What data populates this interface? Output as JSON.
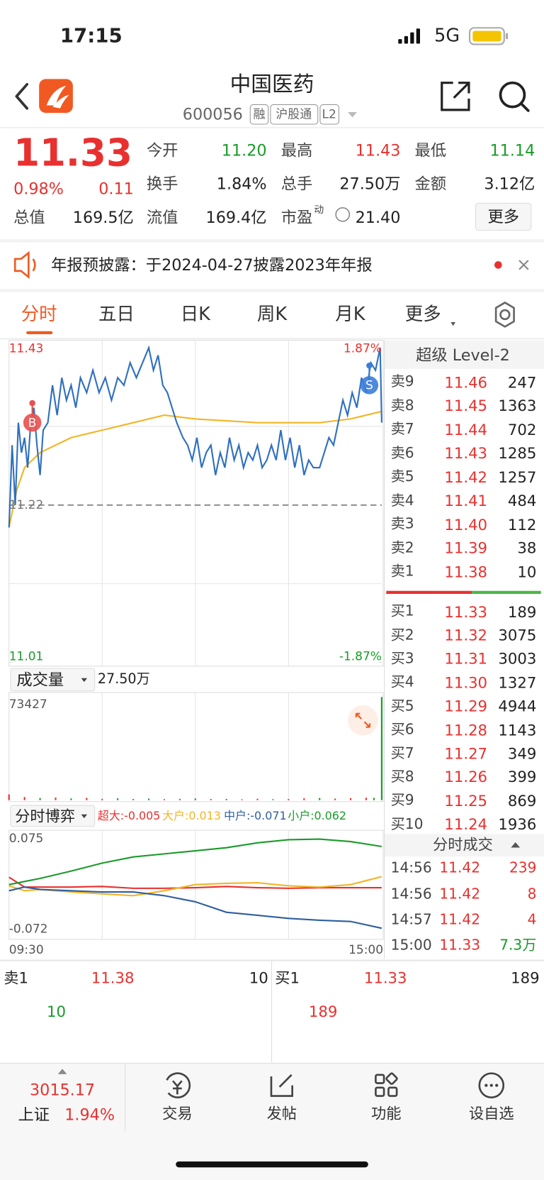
{
  "status_bar": {
    "time": "17:15",
    "network": "5G"
  },
  "header": {
    "name": "中国医药",
    "code": "600056",
    "tags": [
      "融",
      "沪股通",
      "L2"
    ]
  },
  "quote": {
    "price": "11.33",
    "change_pct": "0.98%",
    "change": "0.11",
    "stats": [
      {
        "label": "今开",
        "value": "11.20",
        "color": "#1a9b2a"
      },
      {
        "label": "最高",
        "value": "11.43",
        "color": "#e8312f"
      },
      {
        "label": "最低",
        "value": "11.14",
        "color": "#1a9b2a"
      },
      {
        "label": "换手",
        "value": "1.84%"
      },
      {
        "label": "总手",
        "value": "27.50万"
      },
      {
        "label": "金额",
        "value": "3.12亿"
      },
      {
        "label": "总值",
        "value": "169.5亿"
      },
      {
        "label": "流值",
        "value": "169.4亿"
      },
      {
        "label": "市盈",
        "sup": "动",
        "value": "21.40"
      }
    ],
    "more": "更多"
  },
  "notice": "年报预披露：于2024-04-27披露2023年年报",
  "tabs": [
    "分时",
    "五日",
    "日K",
    "周K",
    "月K",
    "更多"
  ],
  "intraday": {
    "ylim": [
      11.01,
      11.43
    ],
    "yticks": [
      {
        "value": 11.43,
        "label": "11.43"
      },
      {
        "value": 11.01,
        "label": "11.01"
      }
    ],
    "pct_ticks": [
      {
        "value": 11.43,
        "label": "1.87%"
      },
      {
        "value": 11.01,
        "label": "-1.87%"
      }
    ],
    "prev_close": {
      "value": 11.22,
      "label": "11.22"
    },
    "time_labels": [
      "09:30",
      "15:00"
    ],
    "minutes": [
      0,
      2,
      4,
      6,
      8,
      10,
      12,
      14,
      16,
      18,
      20,
      22,
      25,
      28,
      31,
      34,
      37,
      40,
      43,
      46,
      50,
      54,
      58,
      62,
      66,
      70,
      74,
      78,
      82,
      86,
      90,
      93,
      96,
      99,
      102,
      105,
      108,
      112,
      115,
      118,
      121,
      124,
      127,
      130,
      133,
      136,
      139,
      142,
      145,
      148,
      151,
      154,
      157,
      160,
      163,
      166,
      169,
      172,
      175,
      178,
      181,
      184,
      187,
      190,
      193,
      196,
      200,
      203,
      206,
      209,
      212,
      215,
      218,
      221,
      224,
      227,
      230,
      233,
      236,
      239,
      240
    ],
    "price": [
      11.19,
      11.3,
      11.22,
      11.33,
      11.29,
      11.31,
      11.27,
      11.33,
      11.35,
      11.3,
      11.26,
      11.32,
      11.33,
      11.38,
      11.34,
      11.39,
      11.36,
      11.38,
      11.35,
      11.39,
      11.37,
      11.4,
      11.37,
      11.39,
      11.36,
      11.39,
      11.38,
      11.41,
      11.39,
      11.41,
      11.43,
      11.4,
      11.42,
      11.38,
      11.37,
      11.35,
      11.33,
      11.31,
      11.3,
      11.28,
      11.31,
      11.27,
      11.29,
      11.3,
      11.26,
      11.29,
      11.27,
      11.31,
      11.28,
      11.3,
      11.27,
      11.29,
      11.28,
      11.3,
      11.27,
      11.28,
      11.3,
      11.28,
      11.32,
      11.28,
      11.31,
      11.27,
      11.3,
      11.26,
      11.28,
      11.27,
      11.27,
      11.29,
      11.31,
      11.3,
      11.33,
      11.36,
      11.34,
      11.37,
      11.35,
      11.39,
      11.37,
      11.41,
      11.4,
      11.43,
      11.33
    ],
    "avg_minutes": [
      0,
      5,
      10,
      20,
      40,
      60,
      80,
      100,
      120,
      160,
      200,
      220,
      240
    ],
    "avg": [
      11.19,
      11.24,
      11.27,
      11.29,
      11.31,
      11.32,
      11.33,
      11.34,
      11.335,
      11.33,
      11.33,
      11.335,
      11.345
    ],
    "markers": [
      {
        "label": "B",
        "value": 11.33,
        "minute": 15
      },
      {
        "label": "S",
        "value": 11.38,
        "minute": 232
      }
    ]
  },
  "volume": {
    "label": "成交量",
    "total": "27.50万",
    "ylim": [
      0,
      73427
    ],
    "max_label": "73427",
    "minutes": [
      0,
      10,
      20,
      30,
      40,
      50,
      60,
      70,
      80,
      90,
      100,
      110,
      120,
      130,
      140,
      150,
      160,
      170,
      180,
      190,
      200,
      210,
      220,
      230,
      235,
      240
    ],
    "values": [
      4100,
      2200,
      1500,
      1800,
      1200,
      1600,
      900,
      1300,
      800,
      1100,
      700,
      900,
      1200,
      800,
      900,
      600,
      1000,
      700,
      800,
      1300,
      1500,
      1100,
      1400,
      1700,
      1600,
      73427
    ],
    "colors": [
      "#e8312f",
      "#e8312f",
      "#1a9b2a",
      "#e8312f",
      "#1a9b2a",
      "#e8312f",
      "#e8312f",
      "#1a9b2a",
      "#e8312f",
      "#1a9b2a",
      "#e8312f",
      "#e8312f",
      "#1a9b2a",
      "#e8312f",
      "#1a9b2a",
      "#e8312f",
      "#e8312f",
      "#1a9b2a",
      "#e8312f",
      "#e8312f",
      "#1a9b2a",
      "#e8312f",
      "#e8312f",
      "#e8312f",
      "#1a9b2a",
      "#1a9b2a"
    ]
  },
  "game": {
    "label": "分时博弈",
    "ylim": [
      -0.072,
      0.075
    ],
    "yticks": [
      {
        "value": 0.075,
        "label": "0.075"
      },
      {
        "value": -0.072,
        "label": "-0.072"
      }
    ],
    "minutes": [
      0,
      10,
      20,
      40,
      60,
      80,
      100,
      120,
      140,
      160,
      180,
      200,
      220,
      240
    ],
    "series": [
      {
        "label": "超大:-0.005",
        "color": "#e8312f",
        "values": [
          0.012,
          -0.004,
          -0.004,
          -0.004,
          -0.003,
          -0.006,
          -0.006,
          -0.005,
          -0.003,
          -0.005,
          -0.006,
          -0.005,
          -0.005,
          -0.005
        ]
      },
      {
        "label": "大户:0.013",
        "color": "#f3b526",
        "values": [
          -0.002,
          -0.01,
          -0.008,
          -0.012,
          -0.015,
          -0.018,
          -0.01,
          0.0,
          0.002,
          0.003,
          -0.002,
          -0.004,
          0.0,
          0.013
        ]
      },
      {
        "label": "中户:-0.071",
        "color": "#2f5f9f",
        "values": [
          -0.01,
          -0.004,
          -0.008,
          -0.01,
          -0.012,
          -0.012,
          -0.018,
          -0.028,
          -0.045,
          -0.05,
          -0.055,
          -0.058,
          -0.06,
          -0.071
        ]
      },
      {
        "label": "小户:0.062",
        "color": "#1a9b2a",
        "values": [
          0.0,
          0.005,
          0.01,
          0.022,
          0.035,
          0.045,
          0.05,
          0.055,
          0.06,
          0.068,
          0.073,
          0.074,
          0.07,
          0.062
        ]
      }
    ]
  },
  "order_book": {
    "title": "超级 Level-2",
    "sell": [
      {
        "label": "卖9",
        "price": "11.46",
        "volume": "247"
      },
      {
        "label": "卖8",
        "price": "11.45",
        "volume": "1363"
      },
      {
        "label": "卖7",
        "price": "11.44",
        "volume": "702"
      },
      {
        "label": "卖6",
        "price": "11.43",
        "volume": "1285"
      },
      {
        "label": "卖5",
        "price": "11.42",
        "volume": "1257"
      },
      {
        "label": "卖4",
        "price": "11.41",
        "volume": "484"
      },
      {
        "label": "卖3",
        "price": "11.40",
        "volume": "112"
      },
      {
        "label": "卖2",
        "price": "11.39",
        "volume": "38"
      },
      {
        "label": "卖1",
        "price": "11.38",
        "volume": "10"
      }
    ],
    "buy": [
      {
        "label": "买1",
        "price": "11.33",
        "volume": "189"
      },
      {
        "label": "买2",
        "price": "11.32",
        "volume": "3075"
      },
      {
        "label": "买3",
        "price": "11.31",
        "volume": "3003"
      },
      {
        "label": "买4",
        "price": "11.30",
        "volume": "1327"
      },
      {
        "label": "买5",
        "price": "11.29",
        "volume": "4944"
      },
      {
        "label": "买6",
        "price": "11.28",
        "volume": "1143"
      },
      {
        "label": "买7",
        "price": "11.27",
        "volume": "349"
      },
      {
        "label": "买8",
        "price": "11.26",
        "volume": "399"
      },
      {
        "label": "买9",
        "price": "11.25",
        "volume": "869"
      },
      {
        "label": "买10",
        "price": "11.24",
        "volume": "1936"
      }
    ]
  },
  "trades": {
    "title": "分时成交",
    "rows": [
      {
        "time": "14:56",
        "price": "11.42",
        "volume": "239",
        "color": "#e8312f"
      },
      {
        "time": "14:56",
        "price": "11.42",
        "volume": "8",
        "color": "#e8312f"
      },
      {
        "time": "14:57",
        "price": "11.42",
        "volume": "4",
        "color": "#e8312f"
      },
      {
        "time": "15:00",
        "price": "11.33",
        "volume": "7.3万",
        "color": "#1a9b2a"
      }
    ]
  },
  "best": {
    "sell": {
      "label": "卖1",
      "price": "11.38",
      "volume": "10",
      "detail": "10"
    },
    "buy": {
      "label": "买1",
      "price": "11.33",
      "volume": "189",
      "detail": "189"
    }
  },
  "index": {
    "value": "3015.17",
    "name": "上证",
    "change": "1.94%"
  },
  "nav": [
    "交易",
    "发帖",
    "功能",
    "设自选"
  ]
}
